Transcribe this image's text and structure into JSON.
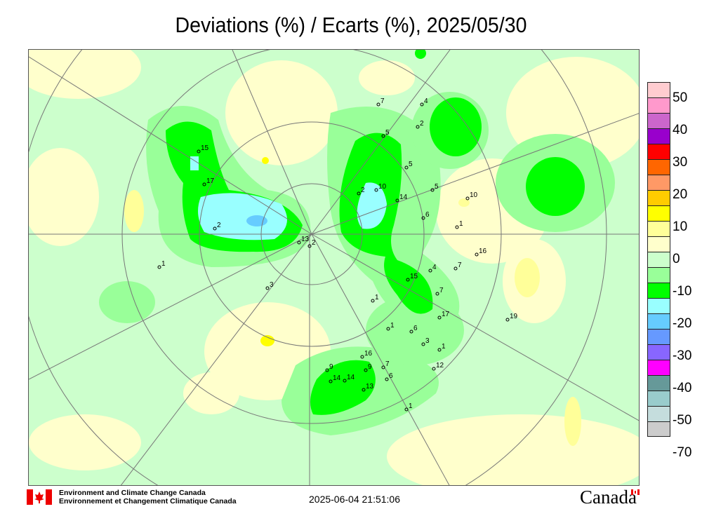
{
  "title": "Deviations (%) / Ecarts (%), 2025/05/30",
  "legend": {
    "colors": [
      "#ffccd0",
      "#ff99cc",
      "#cc66cc",
      "#9900cc",
      "#ff0000",
      "#ff6600",
      "#ff9966",
      "#ffcc00",
      "#ffff00",
      "#ffff99",
      "#ffffcc",
      "#ccffcc",
      "#99ff99",
      "#00ff00",
      "#99ffff",
      "#66ccff",
      "#6699ff",
      "#8866ff",
      "#ff00ff",
      "#669999",
      "#99cccc",
      "#c5dddd",
      "#cccccc"
    ],
    "labels": [
      "50",
      "40",
      "30",
      "20",
      "10",
      "0",
      "-10",
      "-20",
      "-30",
      "-40",
      "-50",
      "-70"
    ]
  },
  "map": {
    "colors": {
      "background": "#ccffcc",
      "positive": "#ffffcc",
      "positive_strong": "#ffff99",
      "yellow": "#ffff00",
      "neg_light": "#99ff99",
      "neg": "#00ff00",
      "neg_strong": "#99ffff",
      "neg_stronger": "#66ccff",
      "graticule": "#777777"
    },
    "stations": [
      "7",
      "4",
      "2",
      "5",
      "5",
      "10",
      "2",
      "14",
      "5",
      "6",
      "1",
      "10",
      "16",
      "7",
      "4",
      "15",
      "7",
      "17",
      "19",
      "6",
      "3",
      "1",
      "12",
      "1",
      "1",
      "16",
      "9",
      "7",
      "6",
      "9",
      "14",
      "14",
      "13",
      "1",
      "15",
      "17",
      "2",
      "13",
      "2",
      "1",
      "3"
    ]
  },
  "footer": {
    "agency_en": "Environment and Climate Change Canada",
    "agency_fr": "Environnement et Changement Climatique Canada",
    "timestamp": "2025-06-04 21:51:06",
    "wordmark": "Canada"
  }
}
